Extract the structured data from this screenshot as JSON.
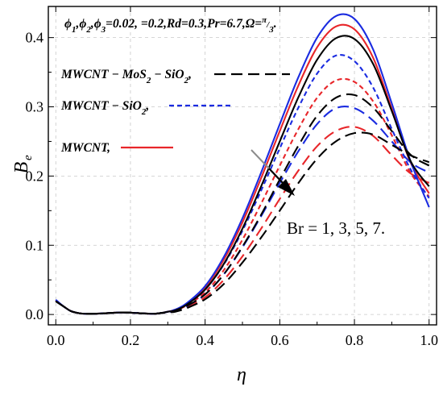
{
  "chart_data": {
    "type": "line",
    "xlabel": "η",
    "ylabel": "B",
    "ylabel_sub": "e",
    "xlim": [
      -0.02,
      1.02
    ],
    "ylim": [
      -0.015,
      0.445
    ],
    "xticks": [
      0.0,
      0.2,
      0.4,
      0.6,
      0.8,
      1.0
    ],
    "xtick_labels": [
      "0.0",
      "0.2",
      "0.4",
      "0.6",
      "0.8",
      "1.0"
    ],
    "yticks": [
      0.0,
      0.1,
      0.2,
      0.3,
      0.4
    ],
    "ytick_labels": [
      "0.0",
      "0.1",
      "0.2",
      "0.3",
      "0.4"
    ],
    "grid": true,
    "parameter_text": "ϕ1,ϕ2,ϕ3=0.02, =0.2,Rd=0.3,Pr=6.7,Ω=π/3.",
    "legend": {
      "placement": "top-left",
      "entries": [
        {
          "label": "MWCNT − MoS₂ − SiO₂,",
          "color": "#000000",
          "dash": "long-dash"
        },
        {
          "label": "MWCNT − SiO₂,",
          "color": "#1a2be0",
          "dash": "short-dash"
        },
        {
          "label": "MWCNT,",
          "color": "#e8262a",
          "dash": "solid"
        }
      ]
    },
    "annotation": {
      "text": "Br = 1, 3, 5, 7.",
      "arrow": "increasing Br"
    },
    "curve_shape": {
      "x": [
        0.0,
        0.02,
        0.04,
        0.06,
        0.08,
        0.1,
        0.14,
        0.18,
        0.22,
        0.26,
        0.28,
        0.3,
        0.32,
        0.35,
        0.4,
        0.45,
        0.5,
        0.55,
        0.6,
        0.65,
        0.7,
        0.75,
        0.8,
        0.85,
        0.9,
        0.95,
        1.0
      ]
    },
    "series": [
      {
        "name": "MWCNT, Br = 1",
        "group": "MWCNT",
        "color": "#e8262a",
        "dash": "solid",
        "values": [
          0.02,
          0.012,
          0.005,
          0.002,
          0.001,
          0.001,
          0.002,
          0.003,
          0.002,
          0.001,
          0.002,
          0.004,
          0.007,
          0.015,
          0.039,
          0.079,
          0.133,
          0.197,
          0.265,
          0.331,
          0.386,
          0.416,
          0.412,
          0.371,
          0.297,
          0.22,
          0.175
        ]
      },
      {
        "name": "MWCNT, Br = 3",
        "group": "MWCNT",
        "color": "#e8262a",
        "dash": "short-dash",
        "values": [
          0.02,
          0.012,
          0.005,
          0.002,
          0.001,
          0.001,
          0.002,
          0.003,
          0.002,
          0.001,
          0.002,
          0.004,
          0.006,
          0.013,
          0.032,
          0.064,
          0.108,
          0.16,
          0.215,
          0.268,
          0.313,
          0.338,
          0.336,
          0.308,
          0.259,
          0.205,
          0.17
        ]
      },
      {
        "name": "MWCNT, Br = 5",
        "group": "MWCNT",
        "color": "#e8262a",
        "dash": "long-dash",
        "values": [
          0.02,
          0.012,
          0.005,
          0.002,
          0.001,
          0.001,
          0.002,
          0.003,
          0.002,
          0.001,
          0.002,
          0.003,
          0.005,
          0.011,
          0.025,
          0.05,
          0.084,
          0.124,
          0.167,
          0.208,
          0.243,
          0.265,
          0.271,
          0.258,
          0.23,
          0.204,
          0.19
        ]
      },
      {
        "name": "MWCNT − SiO₂, Br = 1",
        "group": "MWCNT − SiO₂",
        "color": "#1a2be0",
        "dash": "solid",
        "values": [
          0.021,
          0.012,
          0.005,
          0.002,
          0.001,
          0.001,
          0.002,
          0.003,
          0.002,
          0.001,
          0.002,
          0.004,
          0.007,
          0.016,
          0.041,
          0.083,
          0.139,
          0.205,
          0.275,
          0.343,
          0.4,
          0.431,
          0.427,
          0.383,
          0.305,
          0.222,
          0.155
        ]
      },
      {
        "name": "MWCNT − SiO₂, Br = 3",
        "group": "MWCNT − SiO₂",
        "color": "#1a2be0",
        "dash": "short-dash",
        "values": [
          0.021,
          0.012,
          0.005,
          0.002,
          0.001,
          0.001,
          0.002,
          0.003,
          0.002,
          0.001,
          0.002,
          0.004,
          0.007,
          0.014,
          0.036,
          0.072,
          0.121,
          0.179,
          0.24,
          0.299,
          0.348,
          0.374,
          0.366,
          0.328,
          0.268,
          0.21,
          0.168
        ]
      },
      {
        "name": "MWCNT − SiO₂, Br = 5",
        "group": "MWCNT − SiO₂",
        "color": "#1a2be0",
        "dash": "long-dash",
        "values": [
          0.021,
          0.012,
          0.005,
          0.002,
          0.001,
          0.001,
          0.002,
          0.003,
          0.002,
          0.001,
          0.002,
          0.003,
          0.006,
          0.012,
          0.029,
          0.058,
          0.097,
          0.142,
          0.19,
          0.236,
          0.275,
          0.298,
          0.298,
          0.28,
          0.25,
          0.22,
          0.205
        ]
      },
      {
        "name": "MWCNT − MoS₂ − SiO₂, Br = 1",
        "group": "MWCNT − MoS₂ − SiO₂",
        "color": "#000000",
        "dash": "solid",
        "values": [
          0.019,
          0.012,
          0.005,
          0.002,
          0.001,
          0.001,
          0.002,
          0.003,
          0.002,
          0.001,
          0.002,
          0.004,
          0.006,
          0.014,
          0.036,
          0.073,
          0.124,
          0.185,
          0.25,
          0.314,
          0.368,
          0.399,
          0.398,
          0.362,
          0.294,
          0.222,
          0.185
        ]
      },
      {
        "name": "MWCNT − MoS₂ − SiO₂, Br = 3",
        "group": "MWCNT − MoS₂ − SiO₂",
        "color": "#000000",
        "dash": "long-dash",
        "values": [
          0.019,
          0.012,
          0.005,
          0.002,
          0.001,
          0.001,
          0.002,
          0.003,
          0.002,
          0.001,
          0.002,
          0.003,
          0.005,
          0.012,
          0.029,
          0.058,
          0.098,
          0.144,
          0.195,
          0.244,
          0.287,
          0.313,
          0.317,
          0.299,
          0.265,
          0.231,
          0.215
        ]
      },
      {
        "name": "MWCNT − MoS₂ − SiO₂, Br = 5",
        "group": "MWCNT − MoS₂ − SiO₂",
        "color": "#000000",
        "dash": "long-dash",
        "values": [
          0.019,
          0.012,
          0.005,
          0.002,
          0.001,
          0.001,
          0.002,
          0.003,
          0.002,
          0.001,
          0.002,
          0.003,
          0.004,
          0.009,
          0.022,
          0.044,
          0.075,
          0.111,
          0.15,
          0.19,
          0.225,
          0.25,
          0.262,
          0.26,
          0.245,
          0.23,
          0.22
        ]
      }
    ]
  }
}
